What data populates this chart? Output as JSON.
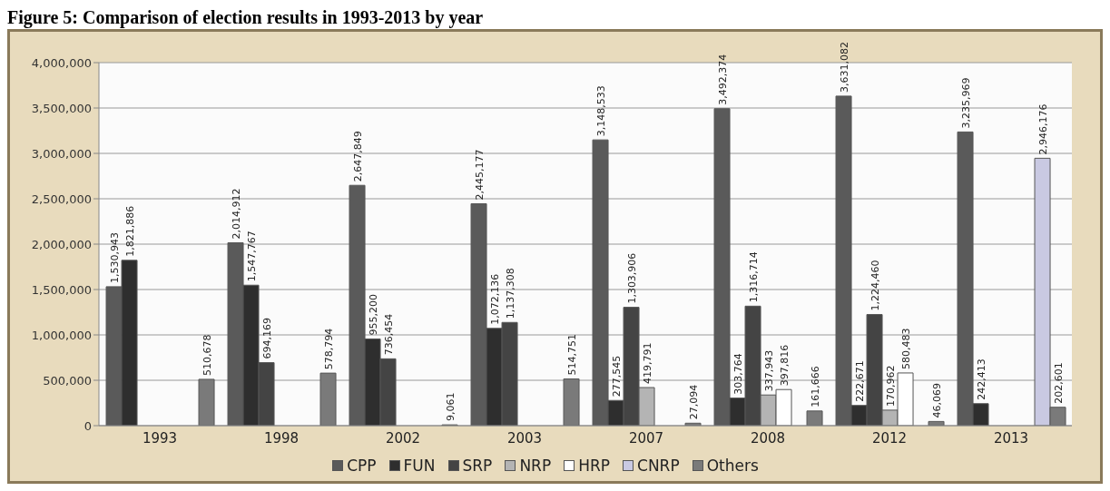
{
  "chart_data": {
    "type": "bar",
    "title": "Figure 5: Comparison of election results in 1993-2013 by year",
    "categories": [
      "1993",
      "1998",
      "2002",
      "2003",
      "2007",
      "2008",
      "2012",
      "2013"
    ],
    "series": [
      {
        "name": "CPP",
        "color": "#5a5a5a",
        "values": [
          1530943,
          2014912,
          2647849,
          2445177,
          3148533,
          3492374,
          3631082,
          3235969
        ],
        "value_labels": [
          "1,530,943",
          "2,014,912",
          "2,647,849",
          "2,445,177",
          "3,148,533",
          "3,492,374",
          "3,631,082",
          "3,235,969"
        ]
      },
      {
        "name": "FUN",
        "color": "#2e2e2e",
        "values": [
          1821886,
          1547767,
          955200,
          1072136,
          277545,
          303764,
          222671,
          242413
        ],
        "value_labels": [
          "1,821,886",
          "1,547,767",
          "955,200",
          "1,072,136",
          "277,545",
          "303,764",
          "222,671",
          "242,413"
        ]
      },
      {
        "name": "SRP",
        "color": "#444444",
        "values": [
          null,
          694169,
          736454,
          1137308,
          1303906,
          1316714,
          1224460,
          null
        ],
        "value_labels": [
          null,
          "694,169",
          "736,454",
          "1,137,308",
          "1,303,906",
          "1,316,714",
          "1,224,460",
          null
        ]
      },
      {
        "name": "NRP",
        "color": "#b4b4b4",
        "values": [
          null,
          null,
          null,
          null,
          419791,
          337943,
          170962,
          null
        ],
        "value_labels": [
          null,
          null,
          null,
          null,
          "419,791",
          "337,943",
          "170,962",
          null
        ]
      },
      {
        "name": "HRP",
        "color": "#ffffff",
        "values": [
          null,
          null,
          null,
          null,
          null,
          397816,
          580483,
          null
        ],
        "value_labels": [
          null,
          null,
          null,
          null,
          null,
          "397,816",
          "580,483",
          null
        ]
      },
      {
        "name": "CNRP",
        "color": "#c9c9e2",
        "values": [
          null,
          null,
          null,
          null,
          null,
          null,
          null,
          2946176
        ],
        "value_labels": [
          null,
          null,
          null,
          null,
          null,
          null,
          null,
          "2,946,176"
        ]
      },
      {
        "name": "Others",
        "color": "#7a7a7a",
        "values": [
          510678,
          578794,
          9061,
          514751,
          27094,
          161666,
          46069,
          202601
        ],
        "value_labels": [
          "510,678",
          "578,794",
          "9,061",
          "514,751",
          "27,094",
          "161,666",
          "46,069",
          "202,601"
        ]
      }
    ],
    "ylim": [
      0,
      4000000
    ],
    "yticks": [
      {
        "value": 0,
        "label": "0"
      },
      {
        "value": 500000,
        "label": "500,000"
      },
      {
        "value": 1000000,
        "label": "1,000,000"
      },
      {
        "value": 1500000,
        "label": "1,500,000"
      },
      {
        "value": 2000000,
        "label": "2,000,000"
      },
      {
        "value": 2500000,
        "label": "2,500,000"
      },
      {
        "value": 3000000,
        "label": "3,000,000"
      },
      {
        "value": 3500000,
        "label": "3,500,000"
      },
      {
        "value": 4000000,
        "label": "4,000,000"
      }
    ],
    "grid": "y",
    "legend": "bottom"
  }
}
